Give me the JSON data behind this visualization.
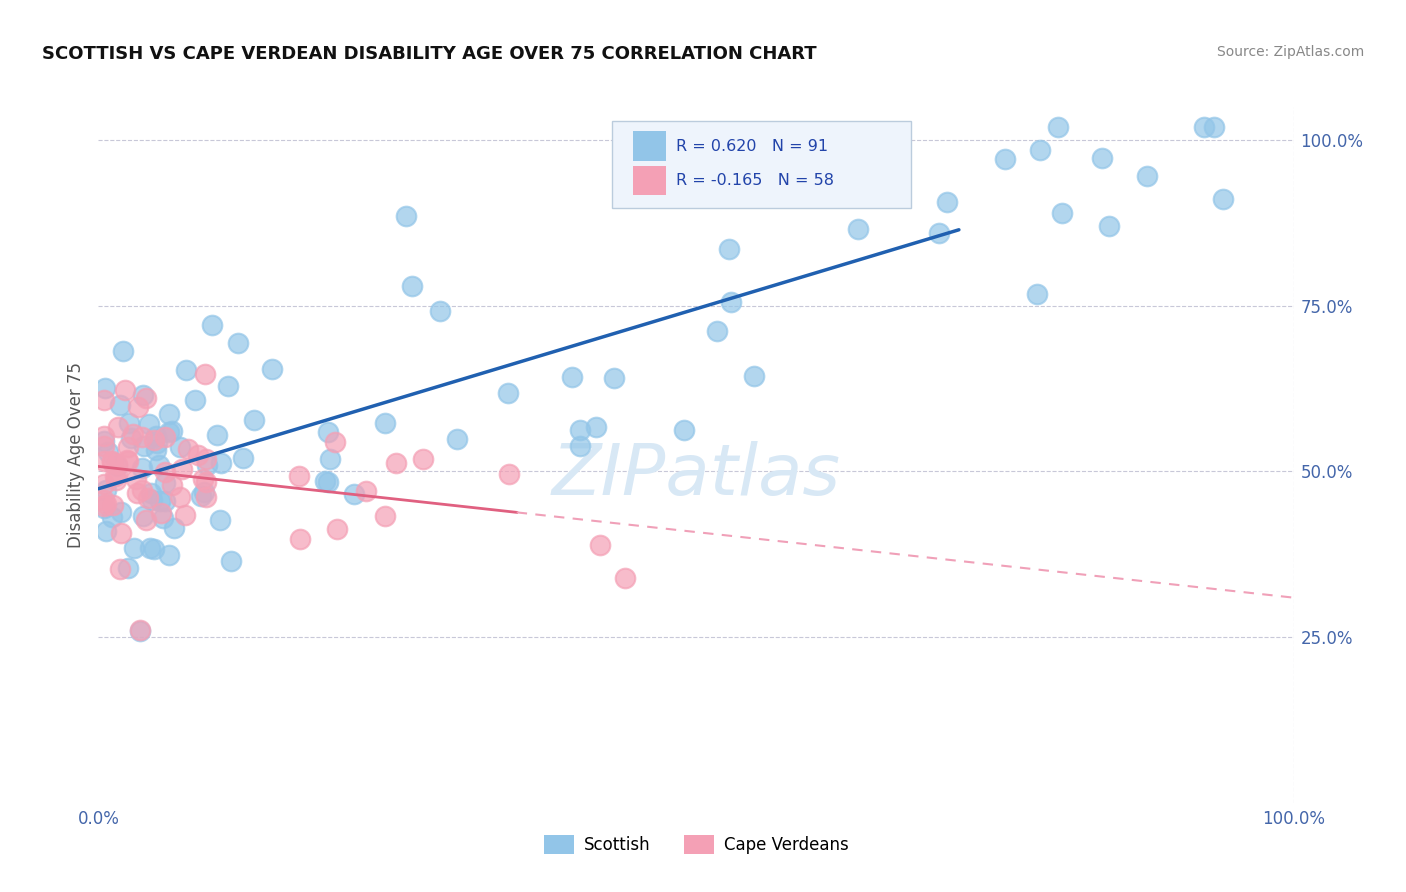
{
  "title": "SCOTTISH VS CAPE VERDEAN DISABILITY AGE OVER 75 CORRELATION CHART",
  "source": "Source: ZipAtlas.com",
  "ylabel": "Disability Age Over 75",
  "xlim": [
    0.0,
    1.0
  ],
  "ylim": [
    0.0,
    1.05
  ],
  "xtick_labels": [
    "0.0%",
    "100.0%"
  ],
  "ytick_labels": [
    "25.0%",
    "50.0%",
    "75.0%",
    "100.0%"
  ],
  "ytick_values": [
    0.25,
    0.5,
    0.75,
    1.0
  ],
  "R_scottish": 0.62,
  "N_scottish": 91,
  "R_cape": -0.165,
  "N_cape": 58,
  "scottish_color": "#92C5E8",
  "cape_color": "#F4A0B5",
  "scottish_line_color": "#2060B0",
  "cape_line_solid_color": "#E06080",
  "cape_line_dash_color": "#F0A0B8",
  "watermark_text": "ZIPatlas",
  "watermark_color": "#D8E8F5",
  "grid_color": "#C8C8D8",
  "tick_color": "#4466AA",
  "title_color": "#111111",
  "source_color": "#888888"
}
